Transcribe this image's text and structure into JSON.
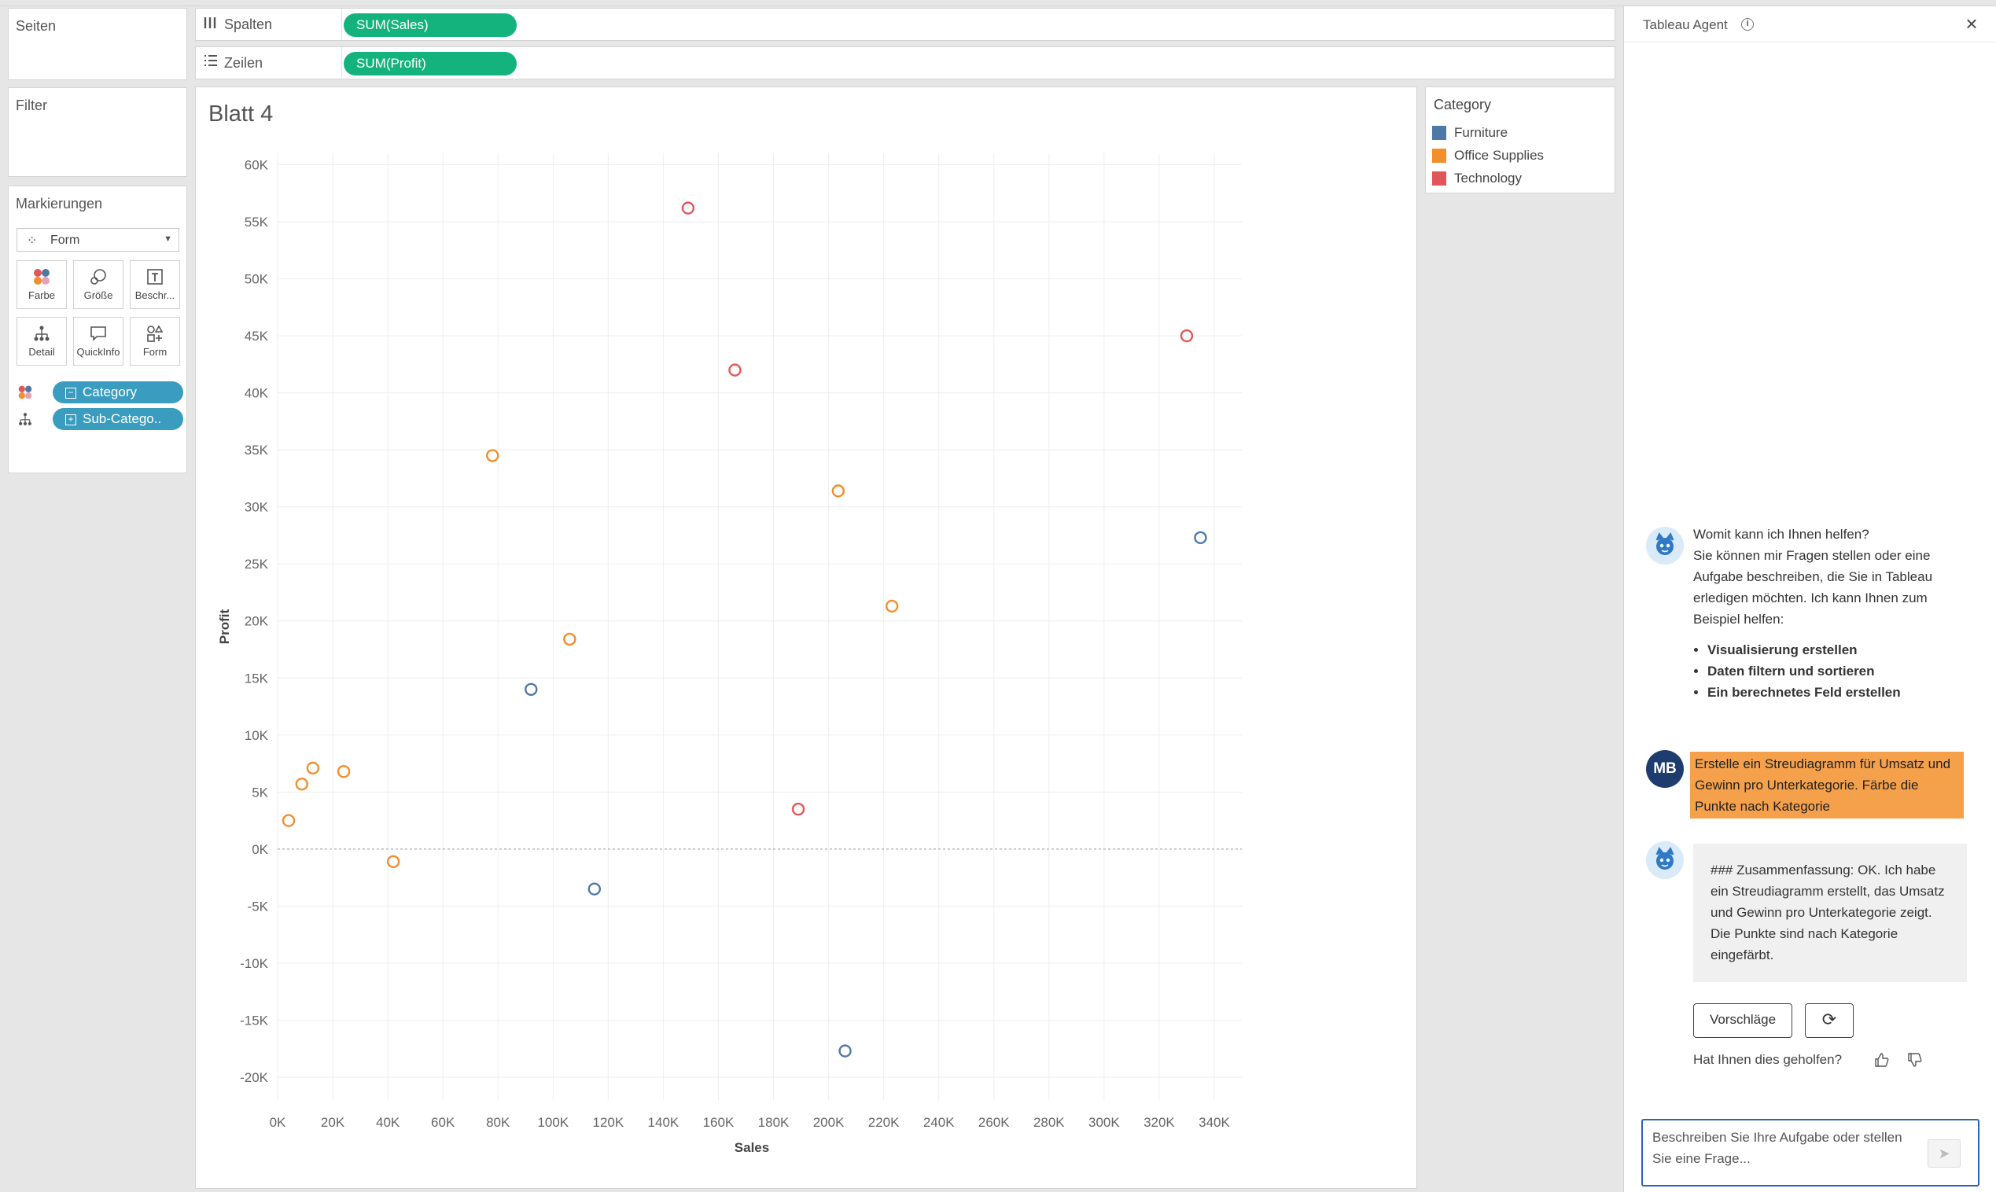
{
  "pages_panel": {
    "title": "Seiten"
  },
  "filter_panel": {
    "title": "Filter"
  },
  "marks_panel": {
    "title": "Markierungen",
    "mark_type": "Form",
    "buttons": [
      {
        "label": "Farbe",
        "icon": "color-dots-icon"
      },
      {
        "label": "Größe",
        "icon": "size-icon"
      },
      {
        "label": "Beschr...",
        "icon": "label-icon"
      },
      {
        "label": "Detail",
        "icon": "detail-icon"
      },
      {
        "label": "QuickInfo",
        "icon": "tooltip-icon"
      },
      {
        "label": "Form",
        "icon": "shape-icon"
      }
    ],
    "fields": [
      {
        "label": "Category",
        "icon": "color-dots-icon",
        "expander": "−"
      },
      {
        "label": "Sub-Catego..",
        "icon": "detail-icon",
        "expander": "+"
      }
    ]
  },
  "shelves": {
    "columns": {
      "label": "Spalten",
      "pill": "SUM(Sales)"
    },
    "rows": {
      "label": "Zeilen",
      "pill": "SUM(Profit)"
    }
  },
  "sheet": {
    "title": "Blatt 4"
  },
  "colors": {
    "Furniture": "#4e79a7",
    "Office Supplies": "#f28e2b",
    "Technology": "#e15759",
    "shelf_pill": "#14b37e",
    "mark_pill": "#3a9dbf"
  },
  "legend": {
    "title": "Category",
    "items": [
      {
        "label": "Furniture",
        "color": "#4e79a7"
      },
      {
        "label": "Office Supplies",
        "color": "#f28e2b"
      },
      {
        "label": "Technology",
        "color": "#e15759"
      }
    ]
  },
  "chart_data": {
    "type": "scatter",
    "title": "Blatt 4",
    "xlabel": "Sales",
    "ylabel": "Profit",
    "xlim": [
      0,
      350000
    ],
    "ylim": [
      -22000,
      61000
    ],
    "xticks": [
      0,
      20000,
      40000,
      60000,
      80000,
      100000,
      120000,
      140000,
      160000,
      180000,
      200000,
      220000,
      240000,
      260000,
      280000,
      300000,
      320000,
      340000
    ],
    "xtick_labels": [
      "0K",
      "20K",
      "40K",
      "60K",
      "80K",
      "100K",
      "120K",
      "140K",
      "160K",
      "180K",
      "200K",
      "220K",
      "240K",
      "260K",
      "280K",
      "300K",
      "320K",
      "340K"
    ],
    "yticks": [
      60000,
      55000,
      50000,
      45000,
      40000,
      35000,
      30000,
      25000,
      20000,
      15000,
      10000,
      5000,
      0,
      -5000,
      -10000,
      -15000,
      -20000
    ],
    "ytick_labels": [
      "60K",
      "55K",
      "50K",
      "45K",
      "40K",
      "35K",
      "30K",
      "25K",
      "20K",
      "15K",
      "10K",
      "5K",
      "0K",
      "-5K",
      "-10K",
      "-15K",
      "-20K"
    ],
    "grid": true,
    "marker": "open-circle",
    "legend_position": "right",
    "series": [
      {
        "name": "Furniture",
        "color": "#4e79a7",
        "points": [
          [
            92000,
            14000
          ],
          [
            115000,
            -3500
          ],
          [
            206000,
            -17700
          ],
          [
            335000,
            27300
          ]
        ]
      },
      {
        "name": "Office Supplies",
        "color": "#f28e2b",
        "points": [
          [
            4000,
            2500
          ],
          [
            8800,
            5700
          ],
          [
            12800,
            7100
          ],
          [
            24000,
            6800
          ],
          [
            42000,
            -1100
          ],
          [
            78000,
            34500
          ],
          [
            106000,
            18400
          ],
          [
            203500,
            31400
          ],
          [
            223000,
            21300
          ]
        ]
      },
      {
        "name": "Technology",
        "color": "#e15759",
        "points": [
          [
            149000,
            56200
          ],
          [
            166000,
            42000
          ],
          [
            189000,
            3500
          ],
          [
            330000,
            45000
          ]
        ]
      }
    ]
  },
  "agent": {
    "title": "Tableau Agent",
    "info_icon": "i",
    "close_icon": "×",
    "greeting": "Womit kann ich Ihnen helfen?",
    "intro": "Sie können mir Fragen stellen oder eine Aufgabe beschreiben, die Sie in Tableau erledigen möchten. Ich kann Ihnen zum Beispiel helfen:",
    "suggestions": [
      "Visualisierung erstellen",
      "Daten filtern und sortieren",
      "Ein berechnetes Feld erstellen"
    ],
    "user_initials": "MB",
    "user_message": "Erstelle ein Streudiagramm für Umsatz und Gewinn pro Unterkategorie. Färbe die Punkte nach Kategorie",
    "response": "### Zusammenfassung: OK. Ich habe ein Streudiagramm erstellt, das Umsatz und Gewinn pro Unterkategorie zeigt. Die Punkte sind nach Kategorie eingefärbt.",
    "suggestions_button": "Vorschläge",
    "refresh_icon": "⟳",
    "feedback_question": "Hat Ihnen dies geholfen?",
    "input_placeholder": "Beschreiben Sie Ihre Aufgabe oder stellen Sie eine Frage...",
    "send_icon": "➤"
  }
}
